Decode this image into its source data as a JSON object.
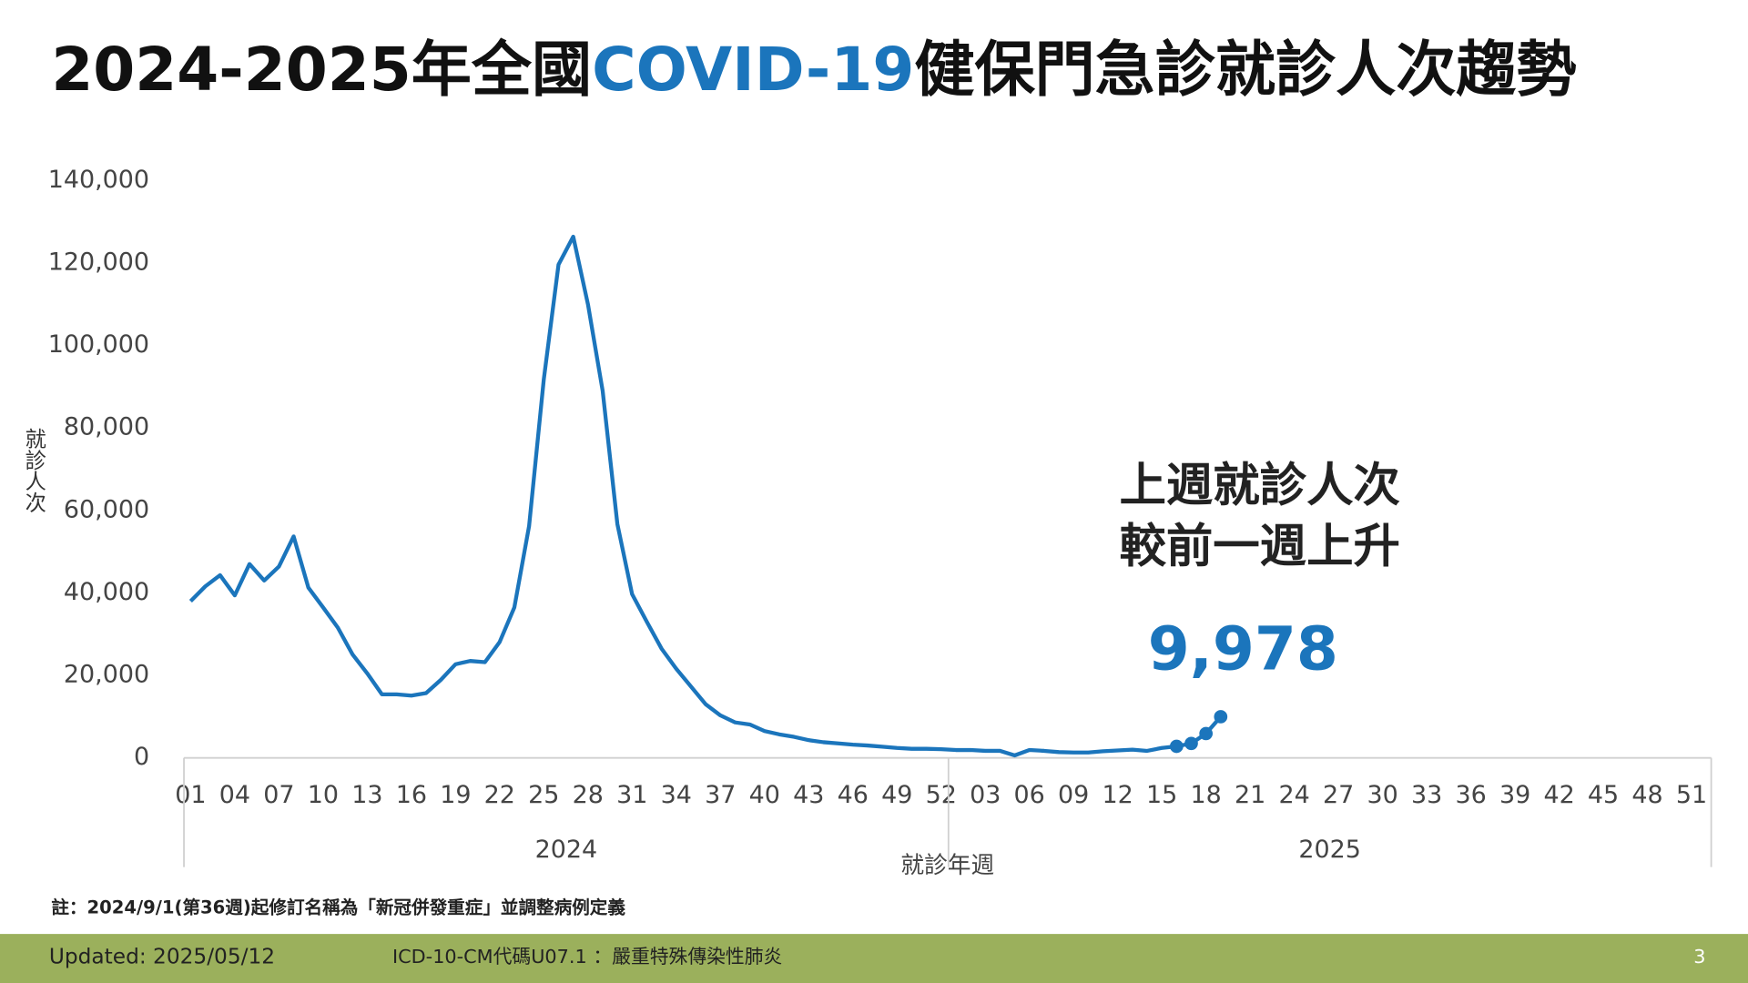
{
  "chart_data": {
    "type": "line",
    "title": [
      "2024-2025年全國",
      "COVID-19",
      "健保門急診就診人次趨勢"
    ],
    "y_label": "就診人次",
    "x_label": "就診年週",
    "categories": [
      "01",
      null,
      null,
      "04",
      null,
      null,
      "07",
      null,
      null,
      "10",
      null,
      null,
      "13",
      null,
      null,
      "16",
      null,
      null,
      "19",
      null,
      null,
      "22",
      null,
      null,
      "25",
      null,
      null,
      "28",
      null,
      null,
      "31",
      null,
      null,
      "34",
      null,
      null,
      "37",
      null,
      null,
      "40",
      null,
      null,
      "43",
      null,
      null,
      "46",
      null,
      null,
      "49",
      null,
      null,
      "52",
      null,
      null,
      "03",
      null,
      null,
      "06",
      null,
      null,
      "09",
      null,
      null,
      "12",
      null,
      null,
      "15",
      null,
      null,
      "18",
      null,
      null,
      "21",
      null,
      null,
      "24",
      null,
      null,
      "27",
      null,
      null,
      "30",
      null,
      null,
      "33",
      null,
      null,
      "36",
      null,
      null,
      "39",
      null,
      null,
      "42",
      null,
      null,
      "45",
      null,
      null,
      "48",
      null,
      null,
      "51",
      null
    ],
    "groups": [
      {
        "name": "2024",
        "count": 52
      },
      {
        "name": "2025",
        "count": 52
      }
    ],
    "series": [
      {
        "name": "就診人次",
        "color": "#1b75bc",
        "values": [
          38000,
          41600,
          44300,
          39400,
          47000,
          43000,
          46400,
          53700,
          41300,
          36500,
          31600,
          25100,
          20500,
          15400,
          15400,
          15100,
          15700,
          18900,
          22700,
          23500,
          23200,
          28100,
          36500,
          56200,
          91800,
          119600,
          126400,
          110000,
          89000,
          56700,
          39700,
          33000,
          26500,
          21600,
          17300,
          13000,
          10300,
          8600,
          8100,
          6500,
          5700,
          5100,
          4300,
          3800,
          3500,
          3200,
          3000,
          2700,
          2400,
          2200,
          2200,
          2100,
          1900,
          1900,
          1700,
          1700,
          600,
          1900,
          1700,
          1400,
          1300,
          1300,
          1600,
          1800,
          2000,
          1700,
          2400,
          2800,
          3500,
          5900,
          9978,
          null,
          null,
          null,
          null,
          null,
          null,
          null,
          null,
          null,
          null,
          null,
          null,
          null,
          null,
          null,
          null,
          null,
          null,
          null,
          null,
          null,
          null,
          null,
          null,
          null,
          null,
          null,
          null,
          null,
          null,
          null,
          null,
          null
        ],
        "value_labels": [
          null,
          null,
          null,
          null,
          null,
          null,
          null,
          null,
          null,
          null,
          null,
          null,
          null,
          null,
          null,
          null,
          null,
          null,
          null,
          null,
          null,
          null,
          null,
          null,
          null,
          null,
          null,
          null,
          null,
          null,
          null,
          null,
          null,
          null,
          null,
          null,
          null,
          null,
          null,
          null,
          null,
          null,
          null,
          null,
          null,
          null,
          null,
          null,
          null,
          null,
          null,
          null,
          null,
          null,
          null,
          null,
          null,
          null,
          null,
          null,
          null,
          null,
          null,
          null,
          null,
          null,
          null,
          null,
          null,
          null,
          "9,978",
          null,
          null,
          null,
          null,
          null,
          null,
          null,
          null,
          null,
          null,
          null,
          null,
          null,
          null,
          null,
          null,
          null,
          null,
          null,
          null,
          null,
          null,
          null,
          null,
          null,
          null,
          null,
          null,
          null,
          null,
          null,
          null,
          null
        ],
        "markers": [
          67,
          68,
          69,
          70
        ]
      }
    ],
    "ylim": [
      0,
      140000
    ],
    "yticks": [
      0,
      {
        "value": 20000,
        "label": "20,000"
      },
      {
        "value": 40000,
        "label": "40,000"
      },
      {
        "value": 60000,
        "label": "60,000"
      },
      {
        "value": 80000,
        "label": "80,000"
      },
      {
        "value": 100000,
        "label": "100,000"
      },
      {
        "value": 120000,
        "label": "120,000"
      },
      {
        "value": 140000,
        "label": "140,000"
      }
    ],
    "grid": false,
    "annotation": [
      "上週就診人次",
      "較前一週上升"
    ]
  },
  "footnote": "註：2024/9/1(第36週)起修訂名稱為「新冠併發重症」並調整病例定義",
  "footer": {
    "updated": "Updated: 2025/05/12",
    "definition": "ICD-10-CM代碼U07.1 ：嚴重特殊傳染性肺炎",
    "page": "3"
  }
}
